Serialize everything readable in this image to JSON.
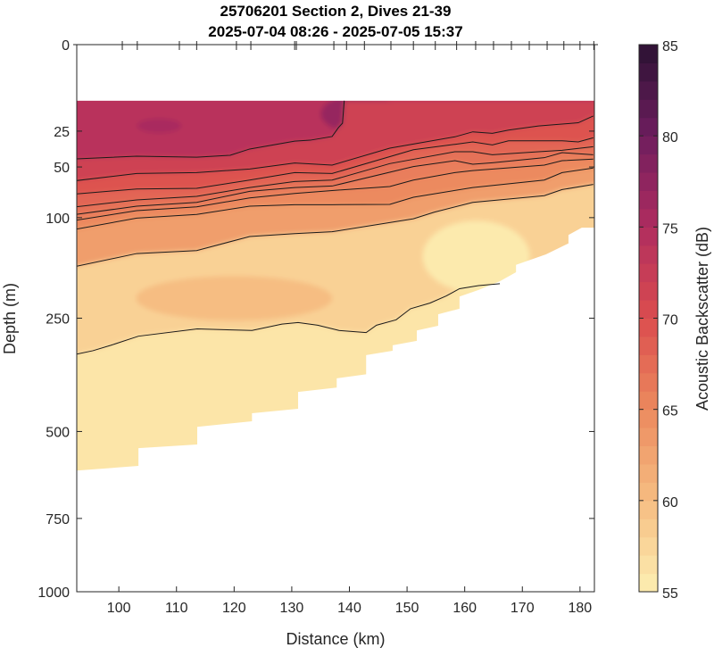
{
  "chart_data": {
    "type": "heatmap",
    "subtype": "filled-contour-section",
    "title": "25706201 Section 2, Dives 21-39",
    "subtitle": "2025-07-04 08:26 - 2025-07-05 15:37",
    "xlabel": "Distance (km)",
    "ylabel": "Depth (m)",
    "xlim": [
      92.7,
      182.5
    ],
    "ylim": [
      0,
      1000
    ],
    "y_scale": "sqrt",
    "y_reversed": true,
    "xticks": [
      100,
      110,
      120,
      130,
      140,
      150,
      160,
      170,
      180
    ],
    "yticks": [
      0,
      25,
      50,
      100,
      250,
      500,
      750,
      1000
    ],
    "dive_marks_km": [
      100.6,
      103.2,
      110.5,
      113.5,
      120.4,
      122.9,
      130.5,
      130.8,
      137.3,
      139.5,
      142.6,
      147.2,
      151.1,
      154.9,
      158.6,
      161.9,
      165.0,
      168.1,
      171.2,
      174.3,
      177.2,
      180.0,
      182.4
    ],
    "colorbar": {
      "label": "Acoustic Backscatter (dB)",
      "clim": [
        55,
        85
      ],
      "ticks": [
        55,
        60,
        65,
        70,
        75,
        80,
        85
      ],
      "colormap_anchors": [
        {
          "v": 55,
          "c": "#fdefb2"
        },
        {
          "v": 60,
          "c": "#f6bd82"
        },
        {
          "v": 65,
          "c": "#ec8a5e"
        },
        {
          "v": 70,
          "c": "#db4d4e"
        },
        {
          "v": 75,
          "c": "#b02d5f"
        },
        {
          "v": 80,
          "c": "#6e1d5e"
        },
        {
          "v": 85,
          "c": "#2b1233"
        }
      ]
    },
    "data_top_depth": 10.5,
    "data_bottom_boundary": [
      [
        92.7,
        606
      ],
      [
        103.4,
        593
      ],
      [
        103.4,
        544
      ],
      [
        113.6,
        534
      ],
      [
        113.6,
        488
      ],
      [
        123.1,
        474
      ],
      [
        123.1,
        454
      ],
      [
        131.1,
        443
      ],
      [
        131.1,
        403
      ],
      [
        137.8,
        393
      ],
      [
        137.8,
        372
      ],
      [
        142.9,
        363
      ],
      [
        142.9,
        322
      ],
      [
        147.5,
        313
      ],
      [
        147.5,
        302
      ],
      [
        151.7,
        293
      ],
      [
        151.7,
        273
      ],
      [
        155.4,
        264
      ],
      [
        155.4,
        243
      ],
      [
        159.1,
        233
      ],
      [
        159.1,
        212
      ],
      [
        162.4,
        201
      ],
      [
        166.1,
        187
      ],
      [
        168.9,
        173
      ],
      [
        168.9,
        162
      ],
      [
        174.1,
        147
      ],
      [
        178.0,
        132
      ],
      [
        178.0,
        121
      ],
      [
        180.3,
        112
      ],
      [
        182.5,
        112
      ]
    ],
    "fill_levels_db": [
      74,
      71.5,
      69.5,
      68,
      67,
      66,
      65,
      63,
      58,
      56
    ],
    "contours": [
      [
        [
          92.6,
          43.6
        ],
        [
          103.1,
          41.6
        ],
        [
          113.5,
          42.3
        ],
        [
          119.3,
          40.9
        ],
        [
          122.7,
          36.4
        ],
        [
          130.5,
          31.1
        ],
        [
          133.2,
          30.5
        ],
        [
          137.0,
          28.2
        ],
        [
          138.1,
          23.0
        ],
        [
          138.8,
          20.6
        ],
        [
          139.1,
          10.5
        ]
      ],
      [
        [
          92.6,
          61.8
        ],
        [
          103.1,
          55.5
        ],
        [
          113.5,
          54.7
        ],
        [
          122.7,
          51.7
        ],
        [
          130.5,
          46.8
        ],
        [
          137.0,
          48.5
        ],
        [
          147.0,
          35.8
        ],
        [
          158.3,
          28.4
        ],
        [
          161.4,
          25.4
        ],
        [
          164.8,
          26.3
        ],
        [
          167.6,
          24.4
        ],
        [
          172.8,
          22.1
        ],
        [
          179.7,
          20.4
        ],
        [
          182.3,
          17.0
        ]
      ],
      [
        [
          92.6,
          74.5
        ],
        [
          103.1,
          69.6
        ],
        [
          113.5,
          69.0
        ],
        [
          122.7,
          61.3
        ],
        [
          130.5,
          54.7
        ],
        [
          137.0,
          55.5
        ],
        [
          151.1,
          36.9
        ],
        [
          158.3,
          33.2
        ],
        [
          161.4,
          31.6
        ],
        [
          164.8,
          33.6
        ],
        [
          167.6,
          30.9
        ],
        [
          176.9,
          30.9
        ],
        [
          179.7,
          31.6
        ],
        [
          182.3,
          29.0
        ]
      ],
      [
        [
          92.6,
          87.9
        ],
        [
          103.1,
          80.6
        ],
        [
          113.5,
          76.9
        ],
        [
          122.7,
          68.2
        ],
        [
          130.5,
          62.6
        ],
        [
          137.0,
          61.3
        ],
        [
          147.0,
          47.3
        ],
        [
          158.3,
          38.3
        ],
        [
          161.4,
          38.3
        ],
        [
          164.8,
          40.5
        ],
        [
          172.8,
          38.3
        ],
        [
          176.9,
          37.3
        ],
        [
          182.3,
          34.8
        ]
      ],
      [
        [
          92.6,
          96.3
        ],
        [
          103.1,
          87.2
        ],
        [
          113.5,
          83.1
        ],
        [
          122.7,
          71.9
        ],
        [
          130.5,
          68.2
        ],
        [
          137.0,
          66.8
        ],
        [
          151.1,
          49.7
        ],
        [
          158.3,
          45.0
        ],
        [
          161.4,
          47.8
        ],
        [
          164.8,
          46.6
        ],
        [
          173.8,
          42.7
        ],
        [
          176.9,
          39.0
        ],
        [
          182.3,
          40.5
        ]
      ],
      [
        [
          92.6,
          103.0
        ],
        [
          103.1,
          92.1
        ],
        [
          113.5,
          87.9
        ],
        [
          122.7,
          78.5
        ],
        [
          130.5,
          74.0
        ],
        [
          137.0,
          71.1
        ],
        [
          147.0,
          67.3
        ],
        [
          151.1,
          61.3
        ],
        [
          158.3,
          54.7
        ],
        [
          161.4,
          53.0
        ],
        [
          173.8,
          48.5
        ],
        [
          176.9,
          45.0
        ],
        [
          182.3,
          43.8
        ]
      ],
      [
        [
          92.6,
          113.8
        ],
        [
          103.1,
          100.5
        ],
        [
          113.5,
          96.3
        ],
        [
          122.7,
          87.2
        ],
        [
          130.5,
          85.6
        ],
        [
          137.0,
          85.6
        ],
        [
          147.0,
          85.3
        ],
        [
          151.1,
          77.8
        ],
        [
          161.4,
          68.2
        ],
        [
          173.8,
          61.3
        ],
        [
          176.9,
          54.7
        ],
        [
          182.3,
          50.9
        ]
      ],
      [
        [
          92.6,
          164.2
        ],
        [
          103.1,
          145.8
        ],
        [
          113.5,
          141.7
        ],
        [
          122.7,
          123.0
        ],
        [
          130.5,
          119.3
        ],
        [
          137.0,
          117.0
        ],
        [
          151.1,
          101.3
        ],
        [
          154.7,
          93.8
        ],
        [
          161.4,
          83.1
        ],
        [
          173.8,
          76.2
        ],
        [
          176.9,
          70.2
        ],
        [
          182.3,
          65.3
        ]
      ],
      [
        [
          92.7,
          320
        ],
        [
          95.5,
          313
        ],
        [
          98.6,
          302
        ],
        [
          103.4,
          284
        ],
        [
          113.6,
          270
        ],
        [
          123.1,
          273
        ],
        [
          128.3,
          261
        ],
        [
          131.1,
          258
        ],
        [
          134.5,
          263
        ],
        [
          138.2,
          273
        ],
        [
          142.9,
          277
        ],
        [
          144.7,
          263
        ],
        [
          148.1,
          253
        ],
        [
          150.6,
          233
        ],
        [
          154.0,
          223
        ],
        [
          156.8,
          211
        ],
        [
          159.1,
          199
        ],
        [
          162.4,
          194
        ],
        [
          166.1,
          191
        ]
      ]
    ]
  }
}
